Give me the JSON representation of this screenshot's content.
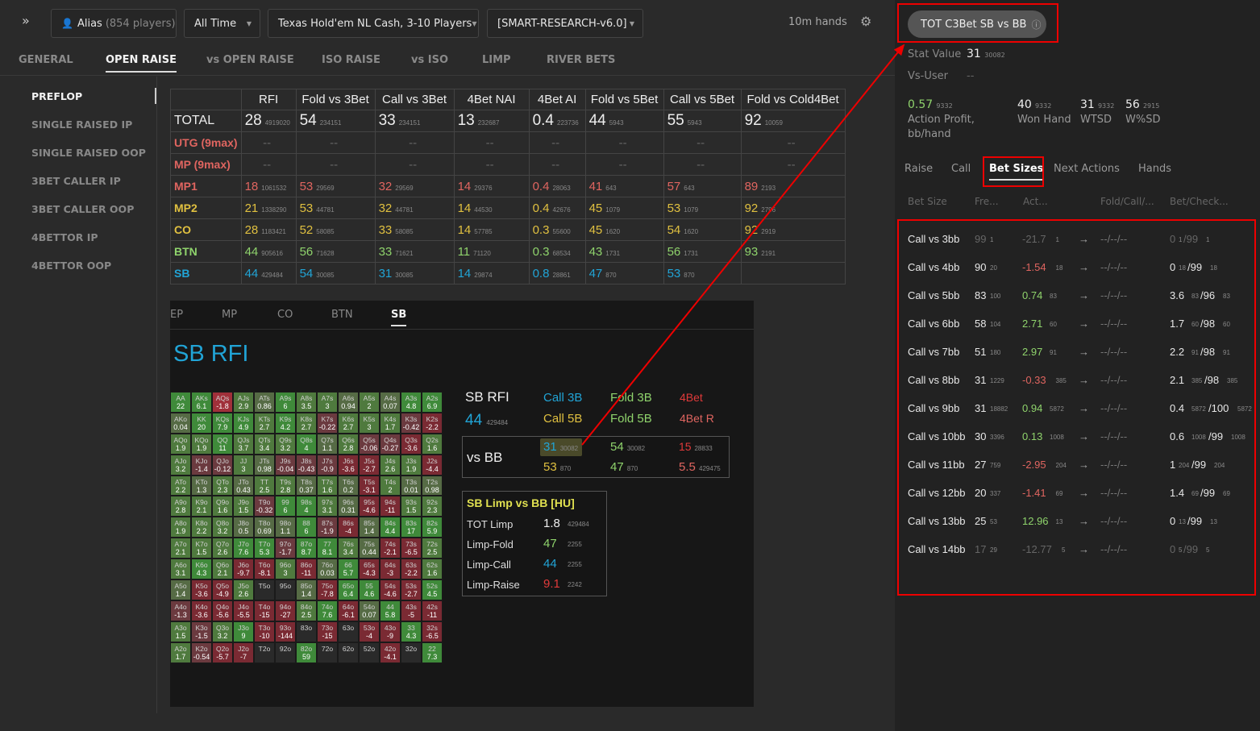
{
  "topbar": {
    "alias": "Alias",
    "players": "(854 players)",
    "time": "All Time",
    "game": "Texas Hold'em NL Cash, 3-10 Players",
    "profile": "[SMART-RESEARCH-v6.0]",
    "hands": "10m hands"
  },
  "tabs": [
    "GENERAL",
    "OPEN RAISE",
    "vs OPEN RAISE",
    "ISO RAISE",
    "vs ISO",
    "LIMP",
    "RIVER BETS"
  ],
  "sidebar": [
    "PREFLOP",
    "SINGLE RAISED IP",
    "SINGLE RAISED OOP",
    "3BET CALLER IP",
    "3BET CALLER OOP",
    "4BETTOR IP",
    "4BETTOR OOP"
  ],
  "stats_table": {
    "headers": [
      "RFI",
      "Fold vs 3Bet",
      "Call vs 3Bet",
      "4Bet NAI",
      "4Bet AI",
      "Fold vs 5Bet",
      "Call vs 5Bet",
      "Fold vs Cold4Bet"
    ],
    "rows": [
      {
        "label": "TOTAL",
        "cells": [
          [
            "28",
            "4919020"
          ],
          [
            "54",
            "234151"
          ],
          [
            "33",
            "234151"
          ],
          [
            "13",
            "232687"
          ],
          [
            "0.4",
            "223736"
          ],
          [
            "44",
            "5943"
          ],
          [
            "55",
            "5943"
          ],
          [
            "92",
            "10059"
          ]
        ]
      },
      {
        "label": "UTG (9max)",
        "cells": [
          [
            "--",
            ""
          ],
          [
            "--",
            ""
          ],
          [
            "--",
            ""
          ],
          [
            "--",
            ""
          ],
          [
            "--",
            ""
          ],
          [
            "--",
            ""
          ],
          [
            "--",
            ""
          ],
          [
            "--",
            ""
          ]
        ]
      },
      {
        "label": "MP (9max)",
        "cells": [
          [
            "--",
            ""
          ],
          [
            "--",
            ""
          ],
          [
            "--",
            ""
          ],
          [
            "--",
            ""
          ],
          [
            "--",
            ""
          ],
          [
            "--",
            ""
          ],
          [
            "--",
            ""
          ],
          [
            "--",
            ""
          ]
        ]
      },
      {
        "label": "MP1",
        "cells": [
          [
            "18",
            "1061532"
          ],
          [
            "53",
            "29569"
          ],
          [
            "32",
            "29569"
          ],
          [
            "14",
            "29376"
          ],
          [
            "0.4",
            "28063"
          ],
          [
            "41",
            "643"
          ],
          [
            "57",
            "643"
          ],
          [
            "89",
            "2193"
          ]
        ]
      },
      {
        "label": "MP2",
        "cells": [
          [
            "21",
            "1338290"
          ],
          [
            "53",
            "44781"
          ],
          [
            "32",
            "44781"
          ],
          [
            "14",
            "44530"
          ],
          [
            "0.4",
            "42676"
          ],
          [
            "45",
            "1079"
          ],
          [
            "53",
            "1079"
          ],
          [
            "92",
            "2796"
          ]
        ]
      },
      {
        "label": "CO",
        "cells": [
          [
            "28",
            "1183421"
          ],
          [
            "52",
            "58085"
          ],
          [
            "33",
            "58085"
          ],
          [
            "14",
            "57785"
          ],
          [
            "0.3",
            "55600"
          ],
          [
            "45",
            "1620"
          ],
          [
            "54",
            "1620"
          ],
          [
            "92",
            "2919"
          ]
        ]
      },
      {
        "label": "BTN",
        "cells": [
          [
            "44",
            "905616"
          ],
          [
            "56",
            "71628"
          ],
          [
            "33",
            "71621"
          ],
          [
            "11",
            "71120"
          ],
          [
            "0.3",
            "68534"
          ],
          [
            "43",
            "1731"
          ],
          [
            "56",
            "1731"
          ],
          [
            "93",
            "2191"
          ]
        ]
      },
      {
        "label": "SB",
        "cells": [
          [
            "44",
            "429484"
          ],
          [
            "54",
            "30085"
          ],
          [
            "31",
            "30085"
          ],
          [
            "14",
            "29874"
          ],
          [
            "0.8",
            "28861"
          ],
          [
            "47",
            "870"
          ],
          [
            "53",
            "870"
          ],
          [
            "",
            ""
          ]
        ]
      }
    ]
  },
  "pos_tabs": [
    "EP",
    "MP",
    "CO",
    "BTN",
    "SB"
  ],
  "rfi_title": "SB RFI",
  "hand_grid": [
    [
      [
        "AA",
        "22"
      ],
      [
        "AKs",
        "6.1"
      ],
      [
        "AQs",
        "-1.8"
      ],
      [
        "AJs",
        "2.9"
      ],
      [
        "ATs",
        "0.86"
      ],
      [
        "A9s",
        "6"
      ],
      [
        "A8s",
        "3.5"
      ],
      [
        "A7s",
        "3"
      ],
      [
        "A6s",
        "0.94"
      ],
      [
        "A5s",
        "2"
      ],
      [
        "A4s",
        "0.07"
      ],
      [
        "A3s",
        "4.8"
      ],
      [
        "A2s",
        "6.9"
      ]
    ],
    [
      [
        "AKo",
        "0.04"
      ],
      [
        "KK",
        "20"
      ],
      [
        "KQs",
        "7.9"
      ],
      [
        "KJs",
        "4.9"
      ],
      [
        "KTs",
        "2.7"
      ],
      [
        "K9s",
        "4.2"
      ],
      [
        "K8s",
        "2.7"
      ],
      [
        "K7s",
        "-0.22"
      ],
      [
        "K6s",
        "2.7"
      ],
      [
        "K5s",
        "3"
      ],
      [
        "K4s",
        "1.7"
      ],
      [
        "K3s",
        "-0.42"
      ],
      [
        "K2s",
        "-2.2"
      ]
    ],
    [
      [
        "AQo",
        "1.9"
      ],
      [
        "KQo",
        "1.9"
      ],
      [
        "QQ",
        "11"
      ],
      [
        "QJs",
        "3.7"
      ],
      [
        "QTs",
        "3.4"
      ],
      [
        "Q9s",
        "3.2"
      ],
      [
        "Q8s",
        "4"
      ],
      [
        "Q7s",
        "1.1"
      ],
      [
        "Q6s",
        "2.8"
      ],
      [
        "Q5s",
        "-0.06"
      ],
      [
        "Q4s",
        "-0.27"
      ],
      [
        "Q3s",
        "-3.6"
      ],
      [
        "Q2s",
        "1.6"
      ]
    ],
    [
      [
        "AJo",
        "3.2"
      ],
      [
        "KJo",
        "-1.4"
      ],
      [
        "QJo",
        "-0.12"
      ],
      [
        "JJ",
        "3"
      ],
      [
        "JTs",
        "0.98"
      ],
      [
        "J9s",
        "-0.04"
      ],
      [
        "J8s",
        "-0.43"
      ],
      [
        "J7s",
        "-0.9"
      ],
      [
        "J6s",
        "-3.6"
      ],
      [
        "J5s",
        "-2.7"
      ],
      [
        "J4s",
        "2.6"
      ],
      [
        "J3s",
        "1.9"
      ],
      [
        "J2s",
        "-4.4"
      ]
    ],
    [
      [
        "ATo",
        "2.2"
      ],
      [
        "KTo",
        "1.3"
      ],
      [
        "QTo",
        "2.3"
      ],
      [
        "JTo",
        "0.43"
      ],
      [
        "TT",
        "2.5"
      ],
      [
        "T9s",
        "2.8"
      ],
      [
        "T8s",
        "0.37"
      ],
      [
        "T7s",
        "1.6"
      ],
      [
        "T6s",
        "0.2"
      ],
      [
        "T5s",
        "-3.1"
      ],
      [
        "T4s",
        "2"
      ],
      [
        "T3s",
        "0.01"
      ],
      [
        "T2s",
        "0.98"
      ]
    ],
    [
      [
        "A9o",
        "2.8"
      ],
      [
        "K9o",
        "2.1"
      ],
      [
        "Q9o",
        "1.6"
      ],
      [
        "J9o",
        "1.5"
      ],
      [
        "T9o",
        "-0.32"
      ],
      [
        "99",
        "6"
      ],
      [
        "98s",
        "4"
      ],
      [
        "97s",
        "3.1"
      ],
      [
        "96s",
        "0.31"
      ],
      [
        "95s",
        "-4.6"
      ],
      [
        "94s",
        "-11"
      ],
      [
        "93s",
        "1.5"
      ],
      [
        "92s",
        "2.3"
      ]
    ],
    [
      [
        "A8o",
        "1.9"
      ],
      [
        "K8o",
        "2.2"
      ],
      [
        "Q8o",
        "3.2"
      ],
      [
        "J8o",
        "0.5"
      ],
      [
        "T8o",
        "0.69"
      ],
      [
        "98o",
        "1.1"
      ],
      [
        "88",
        "6"
      ],
      [
        "87s",
        "-1.9"
      ],
      [
        "86s",
        "-4"
      ],
      [
        "85s",
        "1.4"
      ],
      [
        "84s",
        "4.4"
      ],
      [
        "83s",
        "17"
      ],
      [
        "82s",
        "5.9"
      ]
    ],
    [
      [
        "A7o",
        "2.1"
      ],
      [
        "K7o",
        "1.5"
      ],
      [
        "Q7o",
        "2.6"
      ],
      [
        "J7o",
        "7.6"
      ],
      [
        "T7o",
        "5.3"
      ],
      [
        "97o",
        "-1.7"
      ],
      [
        "87o",
        "8.7"
      ],
      [
        "77",
        "8.1"
      ],
      [
        "76s",
        "3.4"
      ],
      [
        "75s",
        "0.44"
      ],
      [
        "74s",
        "-2.1"
      ],
      [
        "73s",
        "-6.5"
      ],
      [
        "72s",
        "2.5"
      ]
    ],
    [
      [
        "A6o",
        "3.1"
      ],
      [
        "K6o",
        "4.3"
      ],
      [
        "Q6o",
        "2.1"
      ],
      [
        "J6o",
        "-9.7"
      ],
      [
        "T6o",
        "-8.1"
      ],
      [
        "96o",
        "3"
      ],
      [
        "86o",
        "-11"
      ],
      [
        "76o",
        "0.03"
      ],
      [
        "66",
        "5.7"
      ],
      [
        "65s",
        "-4.3"
      ],
      [
        "64s",
        "-3"
      ],
      [
        "63s",
        "-2.2"
      ],
      [
        "62s",
        "1.6"
      ]
    ],
    [
      [
        "A5o",
        "1.4"
      ],
      [
        "K5o",
        "-3.6"
      ],
      [
        "Q5o",
        "-4.9"
      ],
      [
        "J5o",
        "2.6"
      ],
      [
        "T5o",
        ""
      ],
      [
        "95o",
        ""
      ],
      [
        "85o",
        "1.4"
      ],
      [
        "75o",
        "-7.8"
      ],
      [
        "65o",
        "6.4"
      ],
      [
        "55",
        "4.6"
      ],
      [
        "54s",
        "-4.6"
      ],
      [
        "53s",
        "-2.7"
      ],
      [
        "52s",
        "4.5"
      ]
    ],
    [
      [
        "A4o",
        "-1.3"
      ],
      [
        "K4o",
        "-3.6"
      ],
      [
        "Q4o",
        "-5.6"
      ],
      [
        "J4o",
        "-5.5"
      ],
      [
        "T4o",
        "-15"
      ],
      [
        "94o",
        "-27"
      ],
      [
        "84o",
        "2.5"
      ],
      [
        "74o",
        "7.6"
      ],
      [
        "64o",
        "-6.1"
      ],
      [
        "54o",
        "0.07"
      ],
      [
        "44",
        "5.8"
      ],
      [
        "43s",
        "-5"
      ],
      [
        "42s",
        "-11"
      ]
    ],
    [
      [
        "A3o",
        "1.5"
      ],
      [
        "K3o",
        "-1.5"
      ],
      [
        "Q3o",
        "3.2"
      ],
      [
        "J3o",
        "9"
      ],
      [
        "T3o",
        "-10"
      ],
      [
        "93o",
        "-144"
      ],
      [
        "83o",
        ""
      ],
      [
        "73o",
        "-15"
      ],
      [
        "63o",
        ""
      ],
      [
        "53o",
        "-4"
      ],
      [
        "43o",
        "-9"
      ],
      [
        "33",
        "4.3"
      ],
      [
        "32s",
        "-6.5"
      ]
    ],
    [
      [
        "A2o",
        "1.7"
      ],
      [
        "K2o",
        "-0.54"
      ],
      [
        "Q2o",
        "-5.7"
      ],
      [
        "J2o",
        "-7"
      ],
      [
        "T2o",
        ""
      ],
      [
        "92o",
        ""
      ],
      [
        "82o",
        "59"
      ],
      [
        "72o",
        ""
      ],
      [
        "62o",
        ""
      ],
      [
        "52o",
        ""
      ],
      [
        "42o",
        "-4.1"
      ],
      [
        "32o",
        ""
      ],
      [
        "22",
        "7.3"
      ]
    ]
  ],
  "sb_rfi": {
    "label": "SB RFI",
    "rfi": "44",
    "rfi_n": "429484",
    "call3b": "Call 3B",
    "fold3b": "Fold 3B",
    "bet4": "4Bet",
    "call5b": "Call 5B",
    "fold5b": "Fold 5B",
    "bet4r": "4Bet R",
    "vs": "vs BB",
    "r1": [
      [
        "31",
        "30082"
      ],
      [
        "54",
        "30082"
      ],
      [
        "15",
        "28833"
      ]
    ],
    "r2": [
      [
        "53",
        "870"
      ],
      [
        "47",
        "870"
      ],
      [
        "5.5",
        "429475"
      ]
    ]
  },
  "limp": {
    "title": "SB Limp vs BB [HU]",
    "rows": [
      [
        "TOT Limp",
        "1.8",
        "429484"
      ],
      [
        "Limp-Fold",
        "47",
        "2255"
      ],
      [
        "Limp-Call",
        "44",
        "2255"
      ],
      [
        "Limp-Raise",
        "9.1",
        "2242"
      ]
    ]
  },
  "right": {
    "pill": "TOT C3Bet SB vs BB",
    "stat_value_label": "Stat Value",
    "stat_value": "31",
    "stat_value_n": "30082",
    "vs_user_label": "Vs-User",
    "vs_user": "--",
    "metrics": [
      [
        "0.57",
        "9332",
        "Action Profit, bb/hand"
      ],
      [
        "40",
        "9332",
        "Won Hand"
      ],
      [
        "31",
        "9332",
        "WTSD"
      ],
      [
        "56",
        "2915",
        "W%SD"
      ]
    ],
    "tabs": [
      "Raise",
      "Call",
      "Bet Sizes",
      "Next Actions",
      "Hands"
    ],
    "cols": [
      "Bet Size",
      "Fre...",
      "Act...",
      "Fold/Call/...",
      "Bet/Check..."
    ],
    "arrow": "→",
    "rows": [
      [
        "Call vs 3bb",
        "99",
        "1",
        "-21.7",
        "1",
        "--/--/--",
        "0",
        "1",
        "/99",
        "1"
      ],
      [
        "Call vs 4bb",
        "90",
        "20",
        "-1.54",
        "18",
        "--/--/--",
        "0",
        "18",
        "/99",
        "18"
      ],
      [
        "Call vs 5bb",
        "83",
        "100",
        "0.74",
        "83",
        "--/--/--",
        "3.6",
        "83",
        "/96",
        "83"
      ],
      [
        "Call vs 6bb",
        "58",
        "104",
        "2.71",
        "60",
        "--/--/--",
        "1.7",
        "60",
        "/98",
        "60"
      ],
      [
        "Call vs 7bb",
        "51",
        "180",
        "2.97",
        "91",
        "--/--/--",
        "2.2",
        "91",
        "/98",
        "91"
      ],
      [
        "Call vs 8bb",
        "31",
        "1229",
        "-0.33",
        "385",
        "--/--/--",
        "2.1",
        "385",
        "/98",
        "385"
      ],
      [
        "Call vs 9bb",
        "31",
        "18882",
        "0.94",
        "5872",
        "--/--/--",
        "0.4",
        "5872",
        "/100",
        "5872"
      ],
      [
        "Call vs 10bb",
        "30",
        "3396",
        "0.13",
        "1008",
        "--/--/--",
        "0.6",
        "1008",
        "/99",
        "1008"
      ],
      [
        "Call vs 11bb",
        "27",
        "759",
        "-2.95",
        "204",
        "--/--/--",
        "1",
        "204",
        "/99",
        "204"
      ],
      [
        "Call vs 12bb",
        "20",
        "337",
        "-1.41",
        "69",
        "--/--/--",
        "1.4",
        "69",
        "/99",
        "69"
      ],
      [
        "Call vs 13bb",
        "25",
        "53",
        "12.96",
        "13",
        "--/--/--",
        "0",
        "13",
        "/99",
        "13"
      ],
      [
        "Call vs 14bb",
        "17",
        "29",
        "-12.77",
        "5",
        "--/--/--",
        "0",
        "5",
        "/99",
        "5"
      ]
    ]
  }
}
